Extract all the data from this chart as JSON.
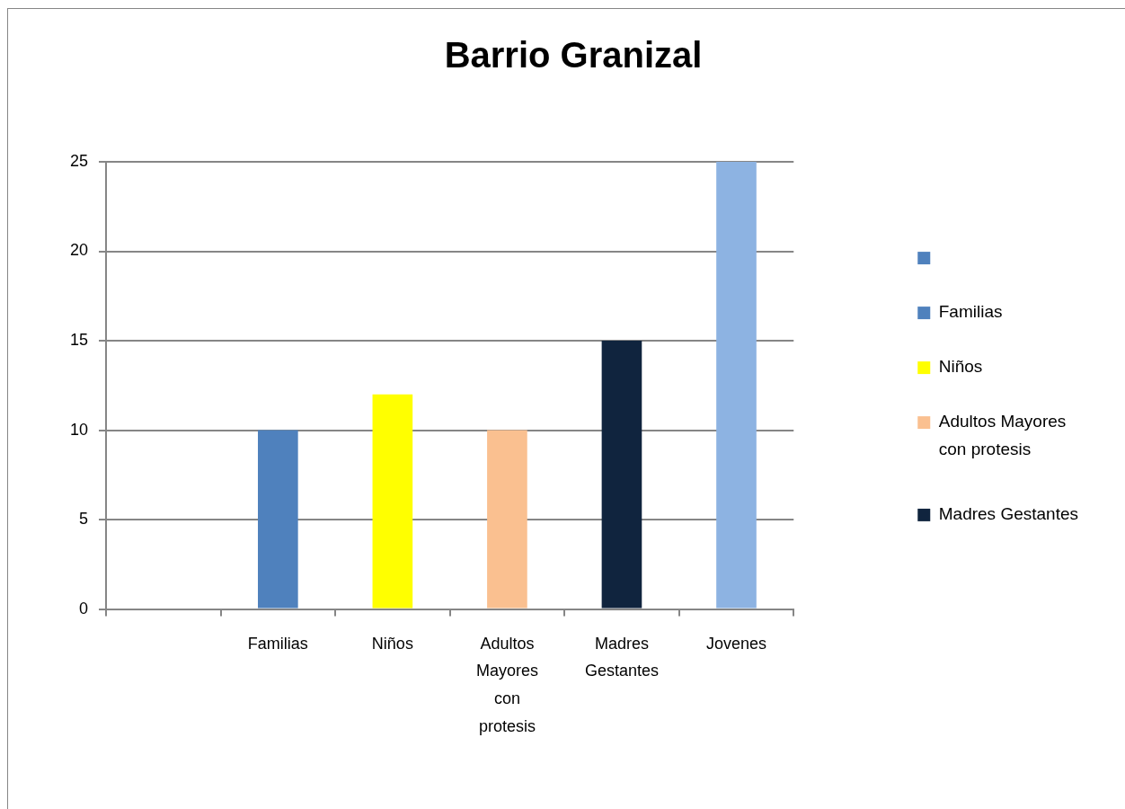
{
  "chart_data": {
    "type": "bar",
    "title": "Barrio Granizal",
    "categories": [
      null,
      "Familias",
      "Niños",
      "Adultos Mayores con protesis",
      "Madres Gestantes",
      "Jovenes"
    ],
    "series": [
      {
        "color": "#4f81bd",
        "values": [
          null,
          null,
          null,
          null,
          null,
          null
        ]
      },
      {
        "name": "Familias",
        "color": "#4f81bd",
        "values": [
          null,
          10,
          null,
          null,
          null,
          null
        ]
      },
      {
        "name": "Niños",
        "color": "#ffff00",
        "values": [
          null,
          null,
          12,
          null,
          null,
          null
        ]
      },
      {
        "name": "Adultos Mayores con protesis",
        "color": "#fac090",
        "values": [
          null,
          null,
          null,
          10,
          null,
          null
        ]
      },
      {
        "name": "Madres Gestantes",
        "color": "#10243e",
        "values": [
          null,
          null,
          null,
          null,
          15,
          null
        ]
      },
      {
        "color": "#8db3e2",
        "values": [
          null,
          null,
          null,
          null,
          null,
          25
        ]
      }
    ],
    "ylim": [
      0,
      25
    ],
    "yticks": [
      0,
      5,
      10,
      15,
      20,
      25
    ],
    "grid": "y",
    "legend": "right"
  }
}
